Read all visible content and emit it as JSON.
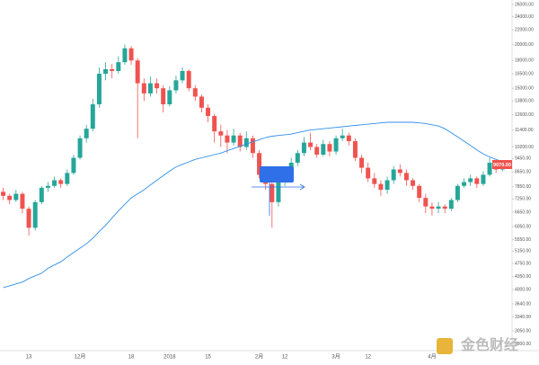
{
  "chart_data": {
    "type": "candlestick",
    "categories": [
      null,
      null,
      null,
      null,
      "13",
      null,
      null,
      null,
      null,
      null,
      null,
      null,
      "12月",
      null,
      null,
      null,
      null,
      null,
      null,
      null,
      "18",
      null,
      null,
      null,
      null,
      null,
      "2018",
      null,
      null,
      null,
      null,
      null,
      "15",
      null,
      null,
      null,
      null,
      null,
      null,
      null,
      "2月",
      null,
      null,
      null,
      "12",
      null,
      null,
      null,
      null,
      null,
      null,
      null,
      "3月",
      null,
      null,
      null,
      null,
      "12",
      null,
      null,
      null,
      null,
      null,
      null,
      null,
      null,
      null,
      "4月",
      null,
      null,
      null,
      null,
      null,
      null,
      null,
      null,
      null,
      null,
      null,
      null
    ],
    "open": [
      7600,
      7400,
      7200,
      7500,
      6800,
      6000,
      7100,
      7800,
      7900,
      8200,
      8000,
      8600,
      9500,
      10800,
      11500,
      13500,
      16500,
      17000,
      16800,
      17800,
      19500,
      18000,
      15500,
      14500,
      15500,
      15000,
      13500,
      14800,
      15800,
      16800,
      15000,
      14200,
      13200,
      12500,
      11300,
      11000,
      10500,
      11000,
      10200,
      10800,
      9800,
      8500,
      8000,
      7100,
      8200,
      8600,
      9200,
      9800,
      10500,
      10200,
      9700,
      10400,
      9900,
      10800,
      11000,
      10600,
      9500,
      8900,
      8300,
      8000,
      7700,
      8200,
      8800,
      8600,
      8200,
      7900,
      7300,
      6900,
      6800,
      6900,
      6800,
      7200,
      7900,
      8100,
      8300,
      8000,
      8500,
      9200,
      8800,
      9100
    ],
    "high": [
      7800,
      7500,
      7700,
      7600,
      6900,
      7200,
      7900,
      8100,
      8400,
      8300,
      8800,
      9700,
      11000,
      11800,
      14000,
      17200,
      17800,
      17600,
      18500,
      20000,
      19800,
      18300,
      16000,
      16200,
      16000,
      15300,
      15200,
      16300,
      17200,
      17000,
      15300,
      14400,
      13500,
      12700,
      11800,
      11400,
      11500,
      11200,
      11300,
      11000,
      10000,
      8900,
      8300,
      8400,
      8900,
      9500,
      10000,
      10900,
      11200,
      10400,
      10700,
      10600,
      11000,
      11500,
      11200,
      10800,
      9700,
      9200,
      8600,
      8200,
      8400,
      9000,
      9100,
      8800,
      8300,
      8000,
      7500,
      7100,
      7100,
      7000,
      7300,
      8000,
      8300,
      8500,
      8400,
      8700,
      9500,
      9300,
      9300,
      9200
    ],
    "low": [
      7200,
      7000,
      7100,
      6600,
      5700,
      5900,
      7000,
      7600,
      7800,
      7800,
      7900,
      8500,
      9400,
      10500,
      11300,
      13200,
      15800,
      16000,
      16500,
      17500,
      17500,
      10800,
      13800,
      14200,
      14500,
      12800,
      13300,
      14500,
      15500,
      14700,
      13800,
      12800,
      12000,
      10500,
      10200,
      9800,
      10300,
      9900,
      10000,
      9500,
      8300,
      7700,
      6000,
      6900,
      7900,
      8400,
      9000,
      9600,
      10000,
      9500,
      9600,
      9600,
      9700,
      10600,
      10300,
      9300,
      8600,
      8100,
      7800,
      7400,
      7500,
      8000,
      8400,
      7900,
      7700,
      7100,
      6600,
      6500,
      6600,
      6600,
      6700,
      7100,
      7800,
      7900,
      7800,
      7900,
      8400,
      8600,
      8700,
      8900
    ],
    "close": [
      7400,
      7200,
      7500,
      6800,
      6000,
      7100,
      7800,
      7900,
      8200,
      8000,
      8600,
      9500,
      10800,
      11500,
      13500,
      16500,
      17000,
      16800,
      17800,
      19500,
      18000,
      15500,
      14500,
      15500,
      15000,
      13500,
      14800,
      15800,
      16800,
      15000,
      14200,
      13200,
      12500,
      11300,
      11000,
      10500,
      11000,
      10200,
      10800,
      9800,
      8500,
      8000,
      7100,
      8200,
      8600,
      9200,
      9800,
      10500,
      10200,
      9700,
      10400,
      9900,
      10800,
      11000,
      10600,
      9500,
      8900,
      8300,
      8000,
      7700,
      8200,
      8800,
      8600,
      8200,
      7900,
      7300,
      6900,
      6800,
      6900,
      6800,
      7200,
      7900,
      8100,
      8300,
      8000,
      8500,
      9200,
      8800,
      9100,
      9070
    ],
    "up_color": "#26a69a",
    "down_color": "#ef5350",
    "series": [
      {
        "color": "#2f8fe8",
        "values": [
          4050,
          4100,
          4150,
          4200,
          4300,
          4380,
          4450,
          4600,
          4700,
          4800,
          4950,
          5100,
          5250,
          5400,
          5600,
          5850,
          6100,
          6400,
          6700,
          7000,
          7300,
          7500,
          7700,
          7950,
          8200,
          8450,
          8700,
          8950,
          9100,
          9250,
          9400,
          9500,
          9600,
          9700,
          9800,
          9950,
          10100,
          10250,
          10400,
          10550,
          10700,
          10850,
          10950,
          11000,
          11050,
          11100,
          11200,
          11300,
          11400,
          11450,
          11500,
          11550,
          11600,
          11650,
          11700,
          11750,
          11800,
          11850,
          11900,
          11950,
          12000,
          12000,
          12000,
          12000,
          12000,
          11950,
          11900,
          11800,
          11700,
          11500,
          11200,
          10900,
          10600,
          10300,
          10000,
          9750,
          9550,
          9400,
          9250,
          9150
        ]
      }
    ],
    "last_label": "9070.00",
    "watermark": "金色财经",
    "log": true,
    "ylim": [
      2600,
      26000
    ],
    "yticks": [
      {
        "value": 26000,
        "label": "26000.00"
      },
      {
        "value": 24000,
        "label": "24000.00"
      },
      {
        "value": 22000,
        "label": "22000.00"
      },
      {
        "value": 20000,
        "label": "20000.00"
      },
      {
        "value": 18000,
        "label": "18000.00"
      },
      {
        "value": 16500,
        "label": "16500.00"
      },
      {
        "value": 15000,
        "label": "15000.00"
      },
      {
        "value": 13800,
        "label": "13800.00"
      },
      {
        "value": 12600,
        "label": "12600.00"
      },
      {
        "value": 11400,
        "label": "11400.00"
      },
      {
        "value": 10200,
        "label": "10200.00"
      },
      {
        "value": 9450,
        "label": "9450.00"
      },
      {
        "value": 8650,
        "label": "8650.00"
      },
      {
        "value": 7850,
        "label": "7850.00"
      },
      {
        "value": 7250,
        "label": "7250.00"
      },
      {
        "value": 6650,
        "label": "6650.00"
      },
      {
        "value": 6050,
        "label": "6050.00"
      },
      {
        "value": 5550,
        "label": "5550.00"
      },
      {
        "value": 5150,
        "label": "5150.00"
      },
      {
        "value": 4750,
        "label": "4750.00"
      },
      {
        "value": 4350,
        "label": "4350.00"
      },
      {
        "value": 4000,
        "label": "4000.00"
      },
      {
        "value": 3640,
        "label": "3640.00"
      },
      {
        "value": 3340,
        "label": "3340.00"
      },
      {
        "value": 3050,
        "label": "3050.00"
      },
      {
        "value": 2800,
        "label": "2800.00"
      }
    ]
  }
}
